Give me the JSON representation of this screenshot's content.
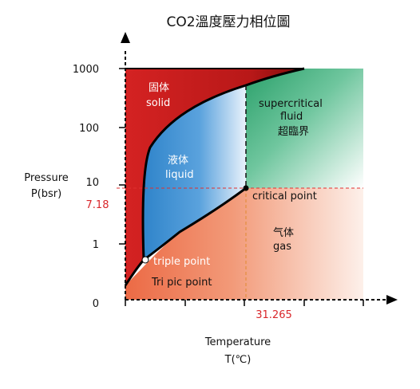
{
  "diagram": {
    "title": "CO2溫度壓力相位圖",
    "y_axis": {
      "label_line1": "Pressure",
      "label_line2": "P(bsr)",
      "ticks": [
        "1000",
        "100",
        "10",
        "1",
        "0"
      ]
    },
    "x_axis": {
      "label_line1": "Temperature",
      "label_line2": "T(℃)"
    },
    "regions": {
      "solid_zh": "固体",
      "solid_en": "solid",
      "liquid_zh": "液体",
      "liquid_en": "liquid",
      "supercritical_line1": "supercritical",
      "supercritical_line2": "fluid",
      "supercritical_zh": "超臨界",
      "gas_zh": "气体",
      "gas_en": "gas"
    },
    "points": {
      "triple_label": "triple point",
      "triple_sublabel": "Tri pic point",
      "critical_label": "critical point"
    },
    "critical_values": {
      "pressure": "7.18",
      "temperature": "31.265"
    },
    "colors": {
      "solid": "#c62020",
      "liquid": "#3f8fd2",
      "supercritical": "#3dae7f",
      "gas": "#ee7752",
      "reference_line": "#e03030"
    }
  }
}
